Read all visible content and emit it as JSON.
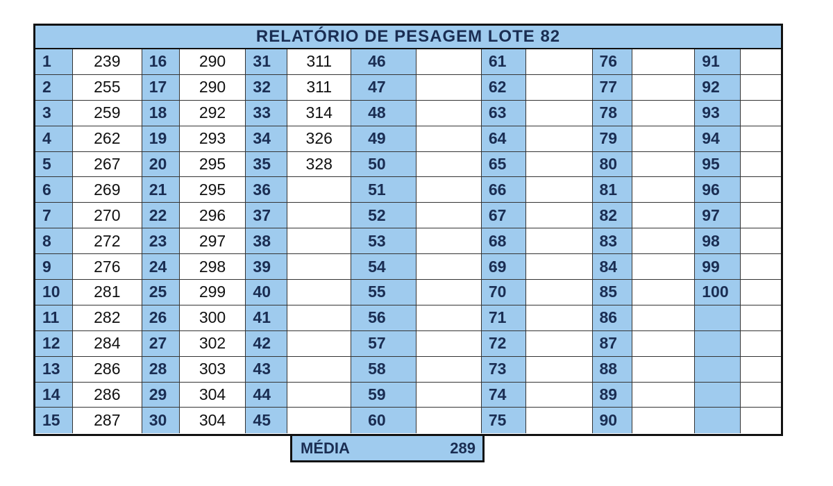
{
  "title": "RELATÓRIO DE PESAGEM LOTE  82",
  "columns": [
    {
      "nums": [
        "1",
        "2",
        "3",
        "4",
        "5",
        "6",
        "7",
        "8",
        "9",
        "10",
        "11",
        "12",
        "13",
        "14",
        "15"
      ],
      "vals": [
        "239",
        "255",
        "259",
        "262",
        "267",
        "269",
        "270",
        "272",
        "276",
        "281",
        "282",
        "284",
        "286",
        "286",
        "287"
      ]
    },
    {
      "nums": [
        "16",
        "17",
        "18",
        "19",
        "20",
        "21",
        "22",
        "23",
        "24",
        "25",
        "26",
        "27",
        "28",
        "29",
        "30"
      ],
      "vals": [
        "290",
        "290",
        "292",
        "293",
        "295",
        "295",
        "296",
        "297",
        "298",
        "299",
        "300",
        "302",
        "303",
        "304",
        "304"
      ]
    },
    {
      "nums": [
        "31",
        "32",
        "33",
        "34",
        "35",
        "36",
        "37",
        "38",
        "39",
        "40",
        "41",
        "42",
        "43",
        "44",
        "45"
      ],
      "vals": [
        "311",
        "311",
        "314",
        "326",
        "328",
        "",
        "",
        "",
        "",
        "",
        "",
        "",
        "",
        "",
        ""
      ]
    },
    {
      "nums": [
        "46",
        "47",
        "48",
        "49",
        "50",
        "51",
        "52",
        "53",
        "54",
        "55",
        "56",
        "57",
        "58",
        "59",
        "60"
      ],
      "vals": [
        "",
        "",
        "",
        "",
        "",
        "",
        "",
        "",
        "",
        "",
        "",
        "",
        "",
        "",
        ""
      ]
    },
    {
      "nums": [
        "61",
        "62",
        "63",
        "64",
        "65",
        "66",
        "67",
        "68",
        "69",
        "70",
        "71",
        "72",
        "73",
        "74",
        "75"
      ],
      "vals": [
        "",
        "",
        "",
        "",
        "",
        "",
        "",
        "",
        "",
        "",
        "",
        "",
        "",
        "",
        ""
      ]
    },
    {
      "nums": [
        "76",
        "77",
        "78",
        "79",
        "80",
        "81",
        "82",
        "83",
        "84",
        "85",
        "86",
        "87",
        "88",
        "89",
        "90"
      ],
      "vals": [
        "",
        "",
        "",
        "",
        "",
        "",
        "",
        "",
        "",
        "",
        "",
        "",
        "",
        "",
        ""
      ]
    },
    {
      "nums": [
        "91",
        "92",
        "93",
        "94",
        "95",
        "96",
        "97",
        "98",
        "99",
        "100",
        "",
        "",
        "",
        "",
        ""
      ],
      "vals": [
        "",
        "",
        "",
        "",
        "",
        "",
        "",
        "",
        "",
        "",
        "",
        "",
        "",
        "",
        ""
      ]
    }
  ],
  "media": {
    "label": "MÉDIA",
    "value": "289"
  },
  "colors": {
    "header_bg": "#9fcbee",
    "number_text": "#1a2d52",
    "border": "#111111"
  }
}
